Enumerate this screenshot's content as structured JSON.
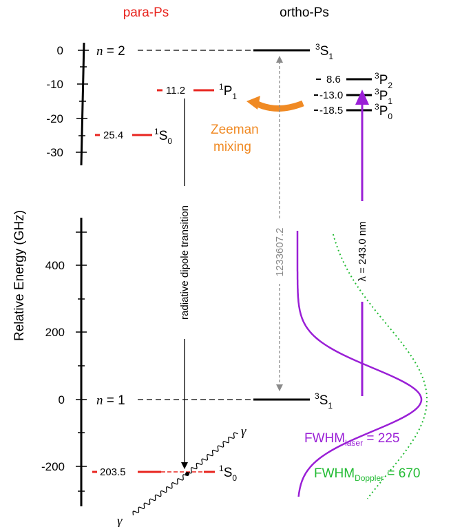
{
  "headers": {
    "para": "para-Ps",
    "ortho": "ortho-Ps"
  },
  "axis_label": "Relative Energy (GHz)",
  "upper_ticks": [
    "0",
    "-10",
    "-20",
    "-30"
  ],
  "lower_ticks": [
    "400",
    "200",
    "0",
    "-200"
  ],
  "n2_label": {
    "n": "n",
    "rest": " = 2"
  },
  "n1_label": {
    "n": "n",
    "rest": " = 1"
  },
  "states": {
    "p1": {
      "value": "11.2",
      "sup": "1",
      "main": "P",
      "sub": "1"
    },
    "s0_upper": {
      "value": "25.4",
      "sup": "1",
      "main": "S",
      "sub": "0"
    },
    "s1_upper": {
      "sup": "3",
      "main": "S",
      "sub": "1"
    },
    "p2": {
      "value": "8.6",
      "sup": "3",
      "main": "P",
      "sub": "2"
    },
    "p1_ortho": {
      "value": "-13.0",
      "sup": "3",
      "main": "P",
      "sub": "1"
    },
    "p0": {
      "value": "-18.5",
      "sup": "3",
      "main": "P",
      "sub": "0"
    },
    "s1_lower": {
      "sup": "3",
      "main": "S",
      "sub": "1"
    },
    "s0_lower": {
      "value": "203.5",
      "sup": "1",
      "main": "S",
      "sub": "0"
    }
  },
  "zeeman": {
    "line1": "Zeeman",
    "line2": "mixing"
  },
  "radiative_label": "radiative dipole transition",
  "interval_label": "1233607.2",
  "laser_label": "λ = 243.0 nm",
  "gamma": "γ",
  "fwhm_laser": {
    "base": "FWHM",
    "sub": "laser",
    "value": " = 225"
  },
  "fwhm_doppler": {
    "base": "FWHM",
    "sub": "Doppler",
    "value": " = 670"
  },
  "colors": {
    "para": "#e8251f",
    "ortho": "#000000",
    "zeeman": "#f08a24",
    "laser": "#9a1fd6",
    "doppler": "#22bb33",
    "interval": "#8a8a8a"
  }
}
